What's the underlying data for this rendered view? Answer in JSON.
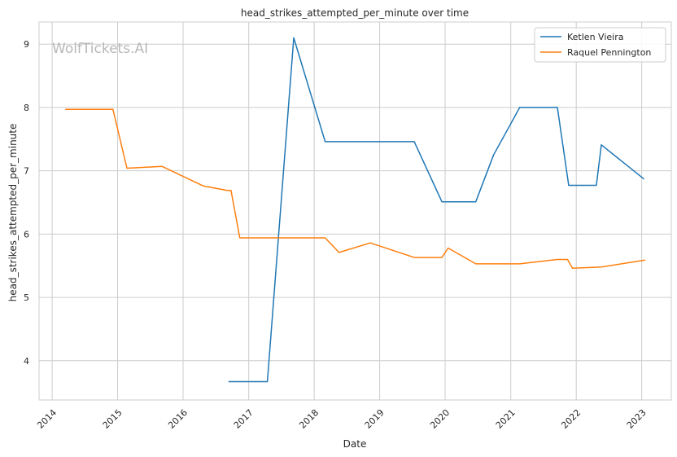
{
  "chart_data": {
    "type": "line",
    "title": "head_strikes_attempted_per_minute over time",
    "xlabel": "Date",
    "ylabel": "head_strikes_attempted_per_minute",
    "watermark": "WolfTickets.AI",
    "x_ticks": [
      "2014",
      "2015",
      "2016",
      "2017",
      "2018",
      "2019",
      "2020",
      "2021",
      "2022",
      "2023"
    ],
    "y_ticks": [
      4,
      5,
      6,
      7,
      8,
      9
    ],
    "xlim": [
      "2013-10-20",
      "2023-06-15"
    ],
    "ylim": [
      3.38,
      9.35
    ],
    "grid": true,
    "legend_position": "top-right",
    "series": [
      {
        "name": "Ketlen Vieira",
        "color": "#1f77b4",
        "points": [
          [
            "2016-09-10",
            3.67
          ],
          [
            "2017-04-15",
            3.67
          ],
          [
            "2017-09-09",
            9.1
          ],
          [
            "2018-03-03",
            7.46
          ],
          [
            "2019-07-13",
            7.46
          ],
          [
            "2019-12-14",
            6.51
          ],
          [
            "2020-06-20",
            6.51
          ],
          [
            "2020-09-27",
            7.25
          ],
          [
            "2021-02-20",
            8.0
          ],
          [
            "2021-09-18",
            8.0
          ],
          [
            "2021-11-20",
            6.77
          ],
          [
            "2022-04-23",
            6.77
          ],
          [
            "2022-05-21",
            7.41
          ],
          [
            "2023-01-14",
            6.87
          ]
        ]
      },
      {
        "name": "Raquel Pennington",
        "color": "#ff7f0e",
        "points": [
          [
            "2014-03-15",
            7.97
          ],
          [
            "2014-12-06",
            7.97
          ],
          [
            "2015-02-22",
            7.04
          ],
          [
            "2015-09-05",
            7.07
          ],
          [
            "2016-04-23",
            6.76
          ],
          [
            "2016-09-03",
            6.69
          ],
          [
            "2016-09-24",
            6.69
          ],
          [
            "2016-11-12",
            5.94
          ],
          [
            "2018-03-03",
            5.94
          ],
          [
            "2018-05-19",
            5.71
          ],
          [
            "2018-11-10",
            5.86
          ],
          [
            "2019-07-13",
            5.63
          ],
          [
            "2019-12-14",
            5.63
          ],
          [
            "2020-01-18",
            5.78
          ],
          [
            "2020-06-20",
            5.53
          ],
          [
            "2021-02-20",
            5.53
          ],
          [
            "2021-09-18",
            5.6
          ],
          [
            "2021-11-13",
            5.6
          ],
          [
            "2021-12-11",
            5.46
          ],
          [
            "2022-05-21",
            5.48
          ],
          [
            "2023-01-21",
            5.59
          ]
        ]
      }
    ]
  }
}
